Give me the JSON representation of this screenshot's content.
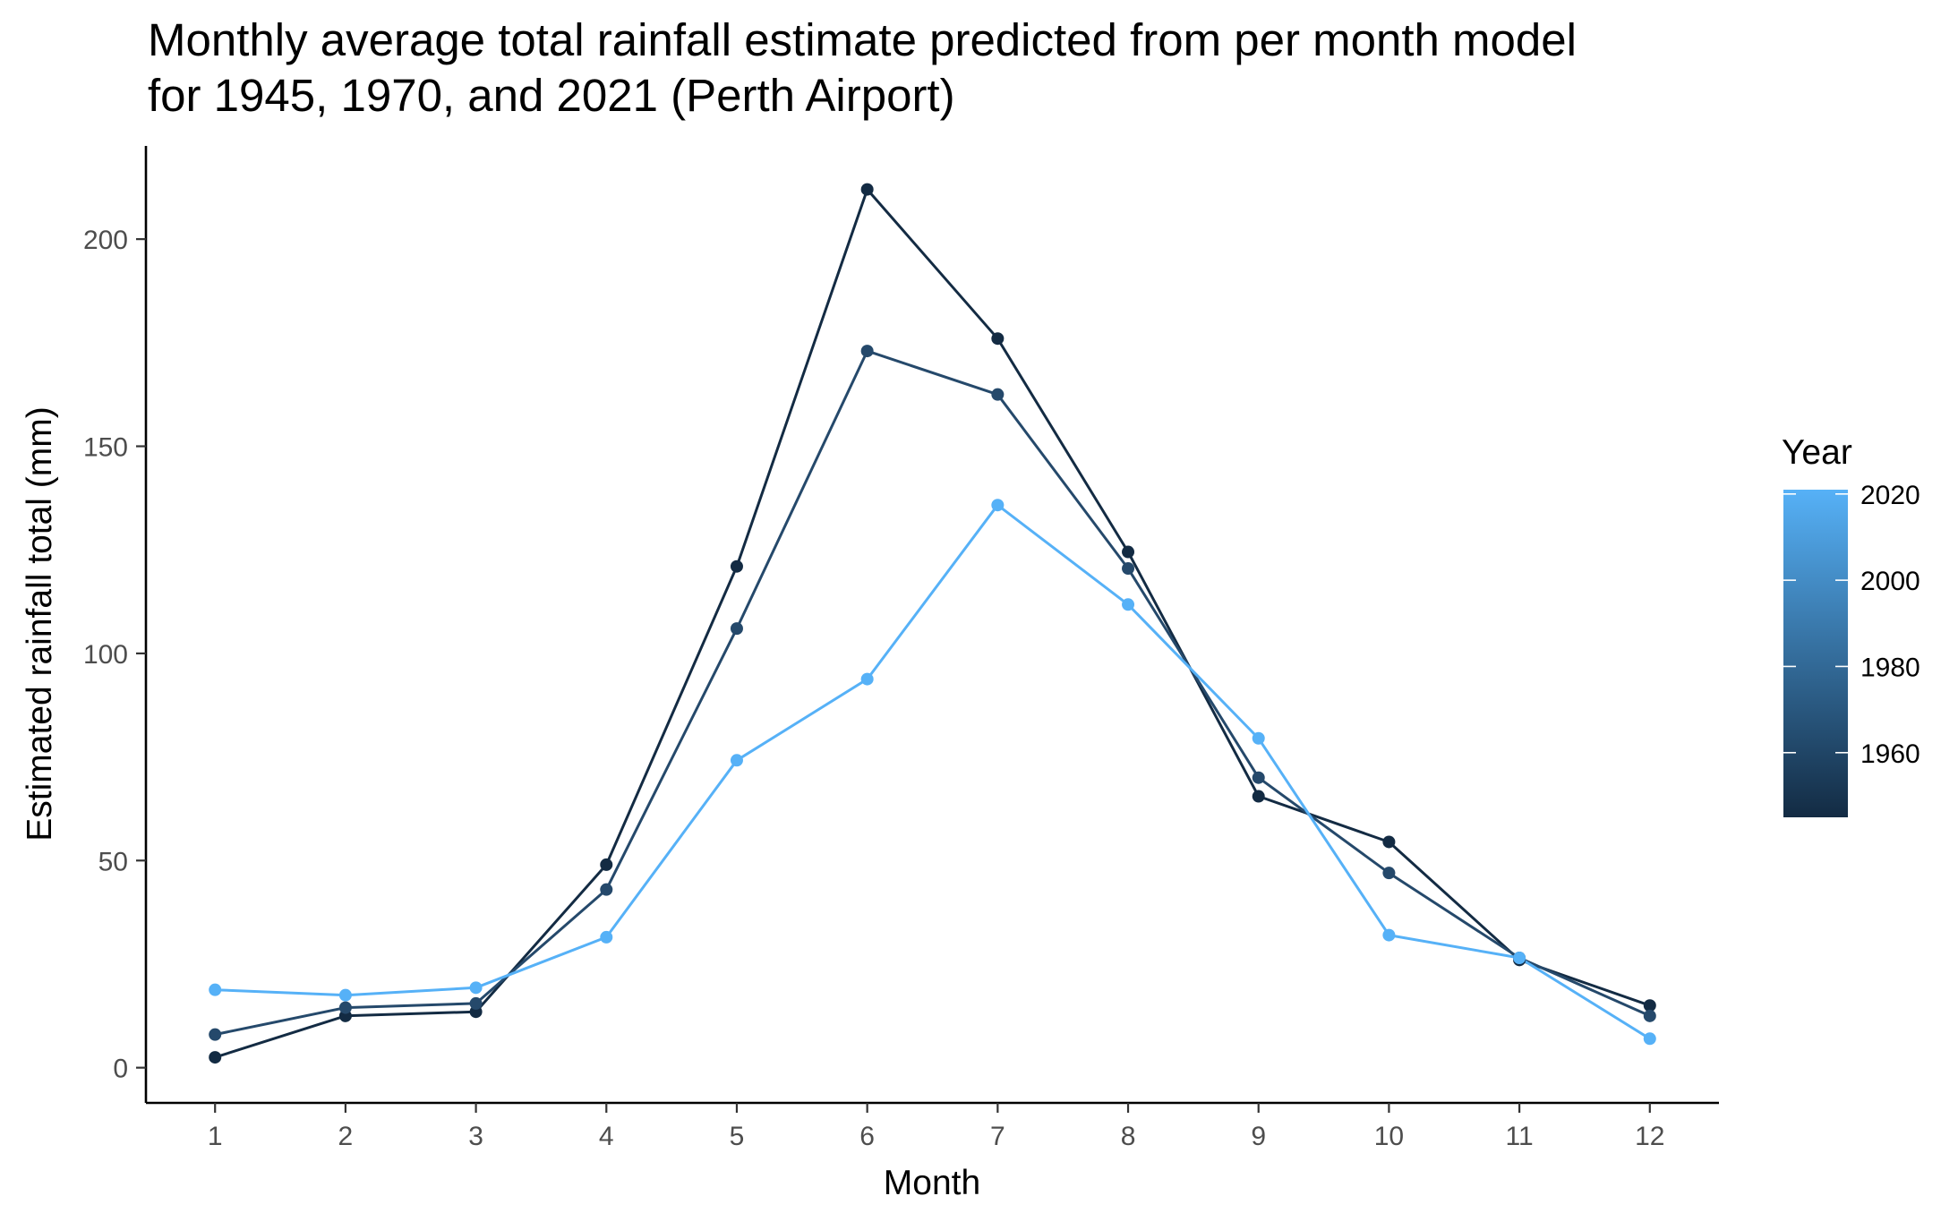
{
  "chart_data": {
    "type": "line",
    "title_lines": [
      "Monthly average total rainfall estimate predicted from per month model",
      "for 1945, 1970, and 2021 (Perth Airport)"
    ],
    "xlabel": "Month",
    "ylabel": "Estimated rainfall total (mm)",
    "x": [
      1,
      2,
      3,
      4,
      5,
      6,
      7,
      8,
      9,
      10,
      11,
      12
    ],
    "x_tick_labels": [
      "1",
      "2",
      "3",
      "4",
      "5",
      "6",
      "7",
      "8",
      "9",
      "10",
      "11",
      "12"
    ],
    "xlim": [
      0.47,
      12.53
    ],
    "ylim": [
      -8.5,
      222.5
    ],
    "y_ticks": [
      0,
      50,
      100,
      150,
      200
    ],
    "y_tick_labels": [
      "0",
      "50",
      "100",
      "150",
      "200"
    ],
    "grid": false,
    "series": [
      {
        "year": 1945,
        "color": "#132b43",
        "values": [
          2.5,
          12.5,
          13.5,
          49,
          121,
          212,
          176,
          124.5,
          65.5,
          54.5,
          26,
          15
        ]
      },
      {
        "year": 1970,
        "color": "#25496b",
        "values": [
          8,
          14.5,
          15.5,
          43,
          106,
          173,
          162.5,
          120.5,
          70,
          47,
          26.5,
          12.5
        ]
      },
      {
        "year": 2021,
        "color": "#56b1f7",
        "values": [
          18.8,
          17.5,
          19.3,
          31.5,
          74.2,
          93.8,
          135.8,
          111.8,
          79.5,
          32,
          26.5,
          7
        ]
      }
    ],
    "legend": {
      "title": "Year",
      "type": "colorbar",
      "position": "right",
      "range": [
        1945,
        2021
      ],
      "ticks": [
        1960,
        1980,
        2000,
        2020
      ],
      "tick_labels": [
        "1960",
        "1980",
        "2000",
        "2020"
      ],
      "color_low": "#132b43",
      "color_high": "#56b1f7"
    }
  }
}
